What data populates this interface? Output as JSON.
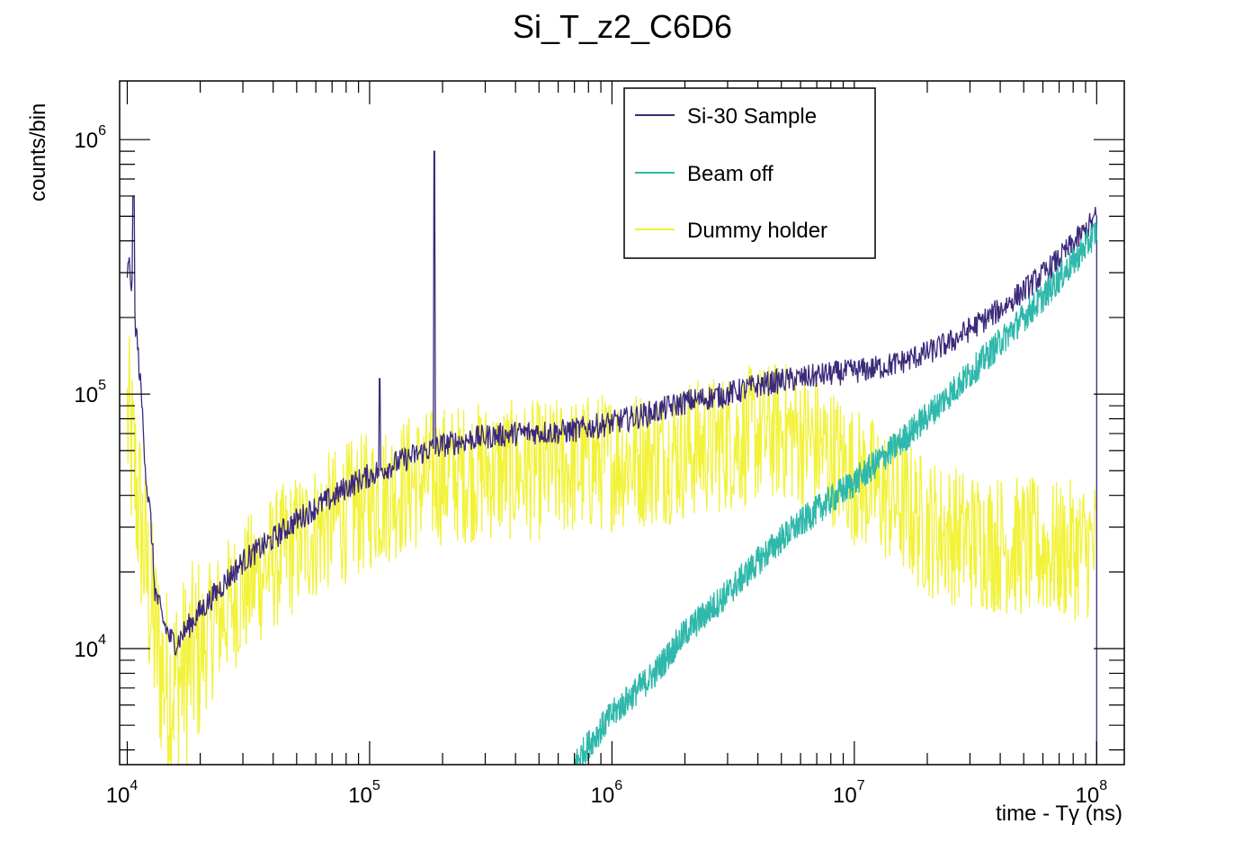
{
  "chart_data": {
    "type": "line",
    "title": "Si_T_z2_C6D6",
    "xlabel": "time - Tγ (ns)",
    "ylabel": "counts/bin",
    "xscale": "log",
    "yscale": "log",
    "xlim": [
      9300,
      130000000
    ],
    "ylim": [
      3500,
      1700000
    ],
    "x_ticks": [
      {
        "base": "10",
        "exp": "4",
        "value": 10000
      },
      {
        "base": "10",
        "exp": "5",
        "value": 100000
      },
      {
        "base": "10",
        "exp": "6",
        "value": 1000000
      },
      {
        "base": "10",
        "exp": "7",
        "value": 10000000
      },
      {
        "base": "10",
        "exp": "8",
        "value": 100000000
      }
    ],
    "y_ticks": [
      {
        "base": "10",
        "exp": "4",
        "value": 10000
      },
      {
        "base": "10",
        "exp": "5",
        "value": 100000
      },
      {
        "base": "10",
        "exp": "6",
        "value": 1000000
      }
    ],
    "legend": {
      "placement": "top-center"
    },
    "series": [
      {
        "name": "Si-30 Sample",
        "color": "#3b2a7a",
        "points": [
          [
            10000,
            300000
          ],
          [
            10200,
            320000
          ],
          [
            10500,
            250000
          ],
          [
            11000,
            160000
          ],
          [
            11500,
            90000
          ],
          [
            12000,
            45000
          ],
          [
            12500,
            32000
          ],
          [
            13000,
            17000
          ],
          [
            14000,
            13000
          ],
          [
            15000,
            11000
          ],
          [
            16000,
            10500
          ],
          [
            17000,
            11500
          ],
          [
            20000,
            14000
          ],
          [
            25000,
            18000
          ],
          [
            30000,
            22000
          ],
          [
            40000,
            27000
          ],
          [
            50000,
            32000
          ],
          [
            60000,
            36000
          ],
          [
            70000,
            39000
          ],
          [
            80000,
            43000
          ],
          [
            100000,
            48000
          ],
          [
            120000,
            52000
          ],
          [
            150000,
            57000
          ],
          [
            180000,
            61000
          ],
          [
            200000,
            63000
          ],
          [
            250000,
            66000
          ],
          [
            300000,
            68000
          ],
          [
            400000,
            70000
          ],
          [
            500000,
            71000
          ],
          [
            600000,
            71000
          ],
          [
            700000,
            72000
          ],
          [
            800000,
            74000
          ],
          [
            1000000,
            77000
          ],
          [
            1500000,
            85000
          ],
          [
            2000000,
            93000
          ],
          [
            3000000,
            100000
          ],
          [
            4000000,
            108000
          ],
          [
            5000000,
            113000
          ],
          [
            6000000,
            115000
          ],
          [
            7000000,
            118000
          ],
          [
            8000000,
            120000
          ],
          [
            10000000,
            123000
          ],
          [
            12000000,
            126000
          ],
          [
            15000000,
            132000
          ],
          [
            20000000,
            145000
          ],
          [
            25000000,
            160000
          ],
          [
            30000000,
            180000
          ],
          [
            40000000,
            215000
          ],
          [
            50000000,
            255000
          ],
          [
            60000000,
            295000
          ],
          [
            70000000,
            340000
          ],
          [
            80000000,
            390000
          ],
          [
            90000000,
            440000
          ],
          [
            100000000,
            500000
          ]
        ],
        "spikes": [
          [
            10600,
            600000
          ],
          [
            110000,
            115000
          ],
          [
            185000,
            900000
          ]
        ]
      },
      {
        "name": "Beam off",
        "color": "#2fb8ab",
        "points": [
          [
            700000,
            3500
          ],
          [
            800000,
            4200
          ],
          [
            1000000,
            5500
          ],
          [
            1500000,
            8000
          ],
          [
            2000000,
            11500
          ],
          [
            3000000,
            16500
          ],
          [
            4000000,
            22000
          ],
          [
            5000000,
            27000
          ],
          [
            7000000,
            35000
          ],
          [
            10000000,
            45000
          ],
          [
            15000000,
            63000
          ],
          [
            20000000,
            82000
          ],
          [
            30000000,
            120000
          ],
          [
            40000000,
            160000
          ],
          [
            50000000,
            200000
          ],
          [
            60000000,
            240000
          ],
          [
            70000000,
            285000
          ],
          [
            80000000,
            330000
          ],
          [
            90000000,
            380000
          ],
          [
            100000000,
            440000
          ]
        ]
      },
      {
        "name": "Dummy holder",
        "color": "#f2f23a",
        "points": [
          [
            10000,
            80000
          ],
          [
            11000,
            40000
          ],
          [
            12000,
            20000
          ],
          [
            13000,
            11000
          ],
          [
            14000,
            8000
          ],
          [
            15000,
            7000
          ],
          [
            17000,
            8000
          ],
          [
            20000,
            10000
          ],
          [
            25000,
            14000
          ],
          [
            30000,
            17000
          ],
          [
            40000,
            22000
          ],
          [
            50000,
            26000
          ],
          [
            70000,
            32000
          ],
          [
            100000,
            38000
          ],
          [
            150000,
            45000
          ],
          [
            200000,
            48000
          ],
          [
            300000,
            50000
          ],
          [
            500000,
            50000
          ],
          [
            700000,
            52000
          ],
          [
            1000000,
            55000
          ],
          [
            1500000,
            57000
          ],
          [
            2000000,
            60000
          ],
          [
            3000000,
            65000
          ],
          [
            4000000,
            70000
          ],
          [
            5000000,
            72000
          ],
          [
            6000000,
            68000
          ],
          [
            8000000,
            58000
          ],
          [
            10000000,
            48000
          ],
          [
            15000000,
            38000
          ],
          [
            20000000,
            30000
          ],
          [
            30000000,
            27000
          ],
          [
            50000000,
            25000
          ],
          [
            70000000,
            24000
          ],
          [
            100000000,
            25000
          ]
        ]
      }
    ]
  }
}
